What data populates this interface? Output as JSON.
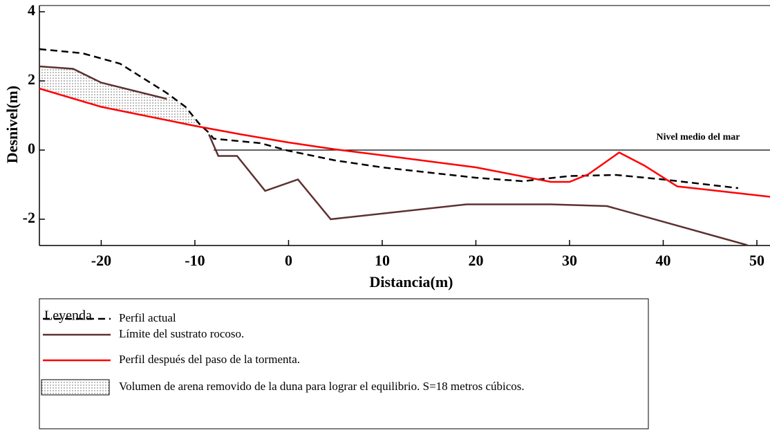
{
  "chart_data": {
    "type": "line",
    "xlabel": "Distancia(m)",
    "ylabel": "Desnivel(m)",
    "xlim": [
      -26.6,
      51.4
    ],
    "ylim": [
      -2.76,
      4.18
    ],
    "xticks": [
      -20,
      -10,
      0,
      10,
      20,
      30,
      40,
      50
    ],
    "yticks": [
      -2,
      0,
      2,
      4
    ],
    "legend_title": "Leyenda",
    "series": [
      {
        "name": "Perfil actual",
        "color": "#000000",
        "style": "dashed",
        "x": [
          -26.6,
          -22,
          -18,
          -13,
          -11,
          -9.5,
          -8.5,
          -8,
          -3,
          0,
          5,
          10,
          20,
          25,
          30,
          35,
          40,
          48
        ],
        "values": [
          2.92,
          2.8,
          2.5,
          1.65,
          1.25,
          0.75,
          0.5,
          0.33,
          0.2,
          -0.02,
          -0.3,
          -0.5,
          -0.8,
          -0.9,
          -0.75,
          -0.72,
          -0.85,
          -1.1
        ]
      },
      {
        "name": "Límite del sustrato rocoso.",
        "color": "#5c3130",
        "style": "solid",
        "x": [
          -26.6,
          -23,
          -20,
          -13,
          null,
          -8.5,
          -7.5,
          -5.5,
          -2.5,
          1,
          4.5,
          19,
          28,
          34,
          49
        ],
        "values": [
          2.42,
          2.35,
          1.95,
          1.48,
          null,
          0.45,
          -0.17,
          -0.17,
          -1.18,
          -0.85,
          -2.0,
          -1.57,
          -1.57,
          -1.62,
          -2.75
        ]
      },
      {
        "name": "Perfil  después del paso de la tormenta.",
        "color": "#ff0000",
        "style": "solid",
        "x": [
          -26.6,
          -20,
          -10,
          -5,
          0,
          5,
          10,
          20,
          28,
          30,
          32,
          35.3,
          38,
          41.5,
          51.4
        ],
        "values": [
          1.78,
          1.25,
          0.7,
          0.45,
          0.22,
          0.02,
          -0.15,
          -0.5,
          -0.92,
          -0.92,
          -0.7,
          -0.07,
          -0.45,
          -1.05,
          -1.35
        ]
      }
    ],
    "shaded_area": {
      "label": "Volumen de arena removido de la duna  para lograr el equilibrio. S=18 metros cúbicos.",
      "x": [
        -26.6,
        -23,
        -20,
        -13,
        -13,
        -11,
        -9.5,
        -10,
        -20,
        -26.6
      ],
      "values": [
        2.42,
        2.35,
        1.95,
        1.48,
        1.65,
        1.25,
        0.75,
        0.7,
        1.25,
        1.78
      ]
    },
    "sea_level": {
      "label": "Nivel medio del mar",
      "value": 0,
      "x": [
        -8,
        51.4
      ]
    }
  }
}
